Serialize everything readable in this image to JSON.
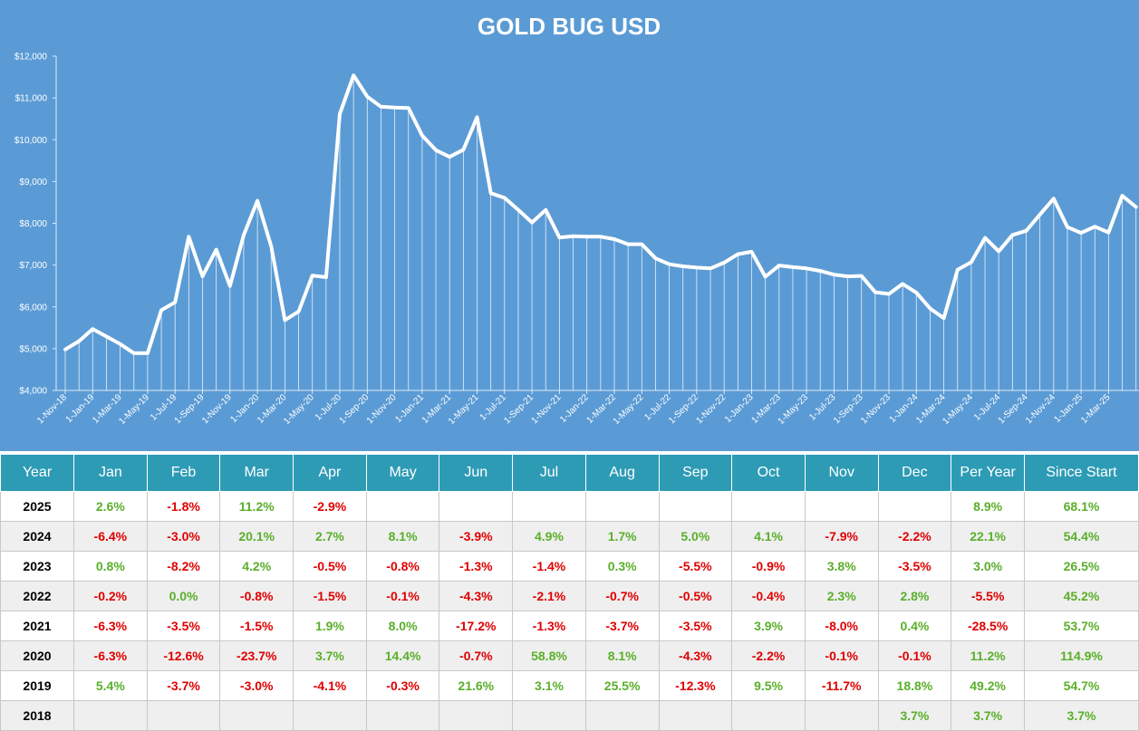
{
  "chart_data": {
    "type": "line",
    "title": "GOLD BUG USD",
    "ylim": [
      4000,
      12000
    ],
    "y_ticks": [
      "$4,000",
      "$5,000",
      "$6,000",
      "$7,000",
      "$8,000",
      "$9,000",
      "$10,000",
      "$11,000",
      "$12,000"
    ],
    "x_tick_labels": [
      "1-Nov-18",
      "1-Jan-19",
      "1-Mar-19",
      "1-May-19",
      "1-Jul-19",
      "1-Sep-19",
      "1-Nov-19",
      "1-Jan-20",
      "1-Mar-20",
      "1-May-20",
      "1-Jul-20",
      "1-Sep-20",
      "1-Nov-20",
      "1-Jan-21",
      "1-Mar-21",
      "1-May-21",
      "1-Jul-21",
      "1-Sep-21",
      "1-Nov-21",
      "1-Jan-22",
      "1-Mar-22",
      "1-May-22",
      "1-Jul-22",
      "1-Sep-22",
      "1-Nov-22",
      "1-Jan-23",
      "1-Mar-23",
      "1-May-23",
      "1-Jul-23",
      "1-Sep-23",
      "1-Nov-23",
      "1-Jan-24",
      "1-Mar-24",
      "1-May-24",
      "1-Jul-24",
      "1-Sep-24",
      "1-Nov-24",
      "1-Jan-25",
      "1-Mar-25"
    ],
    "x_first": "1-Nov-18",
    "x_step": "1 month",
    "grid": false,
    "line_color": "#ffffff",
    "background_color": "#5b9bd5",
    "values": [
      4980,
      5180,
      5470,
      5290,
      5110,
      4890,
      4890,
      5920,
      6110,
      7680,
      6730,
      7370,
      6500,
      7720,
      8540,
      7450,
      5680,
      5890,
      6750,
      6710,
      10620,
      11540,
      11030,
      10790,
      10770,
      10760,
      10100,
      9750,
      9590,
      9760,
      10540,
      8720,
      8610,
      8320,
      8020,
      8320,
      7660,
      7690,
      7680,
      7680,
      7620,
      7500,
      7500,
      7160,
      7020,
      6970,
      6940,
      6920,
      7060,
      7260,
      7320,
      6720,
      6990,
      6950,
      6920,
      6860,
      6770,
      6730,
      6740,
      6350,
      6310,
      6550,
      6340,
      5960,
      5730,
      6890,
      7070,
      7650,
      7330,
      7720,
      7820,
      8210,
      8590,
      7910,
      7770,
      7920,
      7780,
      8660,
      8390
    ]
  },
  "table": {
    "headers": [
      "Year",
      "Jan",
      "Feb",
      "Mar",
      "Apr",
      "May",
      "Jun",
      "Jul",
      "Aug",
      "Sep",
      "Oct",
      "Nov",
      "Dec",
      "Per Year",
      "Since Start"
    ],
    "rows": [
      [
        "2025",
        "2.6%",
        "-1.8%",
        "11.2%",
        "-2.9%",
        "",
        "",
        "",
        "",
        "",
        "",
        "",
        "",
        "8.9%",
        "68.1%"
      ],
      [
        "2024",
        "-6.4%",
        "-3.0%",
        "20.1%",
        "2.7%",
        "8.1%",
        "-3.9%",
        "4.9%",
        "1.7%",
        "5.0%",
        "4.1%",
        "-7.9%",
        "-2.2%",
        "22.1%",
        "54.4%"
      ],
      [
        "2023",
        "0.8%",
        "-8.2%",
        "4.2%",
        "-0.5%",
        "-0.8%",
        "-1.3%",
        "-1.4%",
        "0.3%",
        "-5.5%",
        "-0.9%",
        "3.8%",
        "-3.5%",
        "3.0%",
        "26.5%"
      ],
      [
        "2022",
        "-0.2%",
        "0.0%",
        "-0.8%",
        "-1.5%",
        "-0.1%",
        "-4.3%",
        "-2.1%",
        "-0.7%",
        "-0.5%",
        "-0.4%",
        "2.3%",
        "2.8%",
        "-5.5%",
        "45.2%"
      ],
      [
        "2021",
        "-6.3%",
        "-3.5%",
        "-1.5%",
        "1.9%",
        "8.0%",
        "-17.2%",
        "-1.3%",
        "-3.7%",
        "-3.5%",
        "3.9%",
        "-8.0%",
        "0.4%",
        "-28.5%",
        "53.7%"
      ],
      [
        "2020",
        "-6.3%",
        "-12.6%",
        "-23.7%",
        "3.7%",
        "14.4%",
        "-0.7%",
        "58.8%",
        "8.1%",
        "-4.3%",
        "-2.2%",
        "-0.1%",
        "-0.1%",
        "11.2%",
        "114.9%"
      ],
      [
        "2019",
        "5.4%",
        "-3.7%",
        "-3.0%",
        "-4.1%",
        "-0.3%",
        "21.6%",
        "3.1%",
        "25.5%",
        "-12.3%",
        "9.5%",
        "-11.7%",
        "18.8%",
        "49.2%",
        "54.7%"
      ],
      [
        "2018",
        "",
        "",
        "",
        "",
        "",
        "",
        "",
        "",
        "",
        "",
        "",
        "3.7%",
        "3.7%",
        "3.7%"
      ]
    ],
    "colors": {
      "header_bg": "#2e9bb5",
      "positive": "#5aaf2a",
      "negative": "#e00000",
      "alt_row_bg": "#efefef"
    }
  }
}
